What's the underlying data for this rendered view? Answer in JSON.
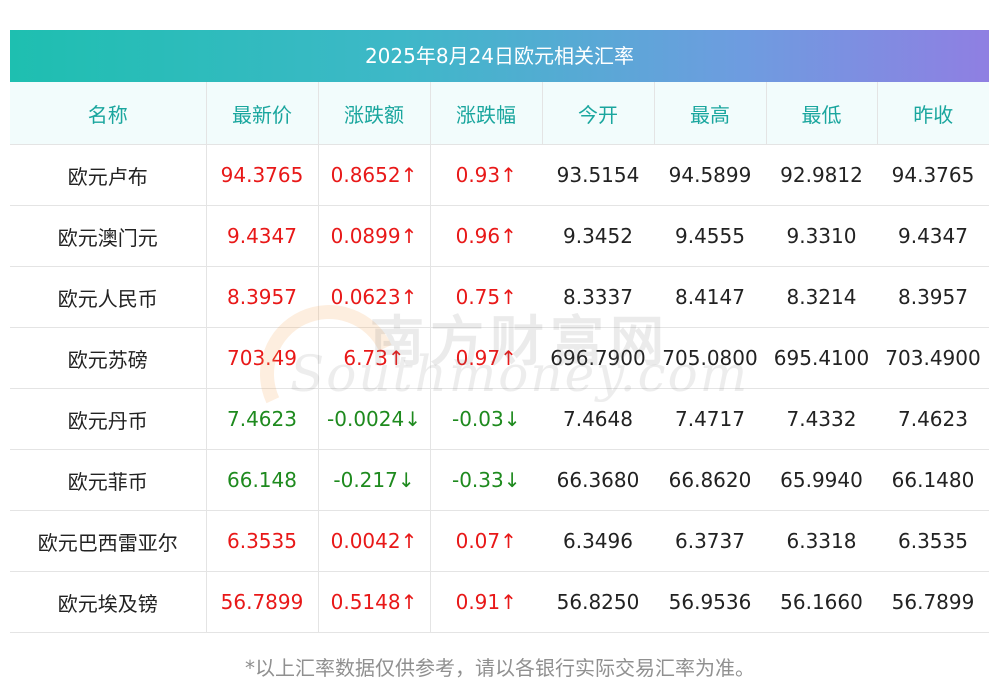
{
  "title": "2025年8月24日欧元相关汇率",
  "headers": [
    "名称",
    "最新价",
    "涨跌额",
    "涨跌幅",
    "今开",
    "最高",
    "最低",
    "昨收"
  ],
  "rows": [
    {
      "name": "欧元卢布",
      "latest": "94.3765",
      "change": "0.8652↑",
      "pct": "0.93↑",
      "open": "93.5154",
      "high": "94.5899",
      "low": "92.9812",
      "prev": "94.3765",
      "dir": "up"
    },
    {
      "name": "欧元澳门元",
      "latest": "9.4347",
      "change": "0.0899↑",
      "pct": "0.96↑",
      "open": "9.3452",
      "high": "9.4555",
      "low": "9.3310",
      "prev": "9.4347",
      "dir": "up"
    },
    {
      "name": "欧元人民币",
      "latest": "8.3957",
      "change": "0.0623↑",
      "pct": "0.75↑",
      "open": "8.3337",
      "high": "8.4147",
      "low": "8.3214",
      "prev": "8.3957",
      "dir": "up"
    },
    {
      "name": "欧元苏磅",
      "latest": "703.49",
      "change": "6.73↑",
      "pct": "0.97↑",
      "open": "696.7900",
      "high": "705.0800",
      "low": "695.4100",
      "prev": "703.4900",
      "dir": "up"
    },
    {
      "name": "欧元丹币",
      "latest": "7.4623",
      "change": "-0.0024↓",
      "pct": "-0.03↓",
      "open": "7.4648",
      "high": "7.4717",
      "low": "7.4332",
      "prev": "7.4623",
      "dir": "down"
    },
    {
      "name": "欧元菲币",
      "latest": "66.148",
      "change": "-0.217↓",
      "pct": "-0.33↓",
      "open": "66.3680",
      "high": "66.8620",
      "low": "65.9940",
      "prev": "66.1480",
      "dir": "down"
    },
    {
      "name": "欧元巴西雷亚尔",
      "latest": "6.3535",
      "change": "0.0042↑",
      "pct": "0.07↑",
      "open": "6.3496",
      "high": "6.3737",
      "low": "6.3318",
      "prev": "6.3535",
      "dir": "up"
    },
    {
      "name": "欧元埃及镑",
      "latest": "56.7899",
      "change": "0.5148↑",
      "pct": "0.91↑",
      "open": "56.8250",
      "high": "56.9536",
      "low": "56.1660",
      "prev": "56.7899",
      "dir": "up"
    }
  ],
  "watermark": {
    "cn": "南方财富网",
    "en": "Southmoney.com"
  },
  "footnote": "*以上汇率数据仅供参考，请以各银行实际交易汇率为准。",
  "colors": {
    "up": "#e81818",
    "down": "#1e8a1e",
    "header_text": "#1aa69e",
    "header_bg": "#f2fcfc",
    "title_gradient_start": "#1ebfb0",
    "title_gradient_end": "#8f7fe2"
  }
}
